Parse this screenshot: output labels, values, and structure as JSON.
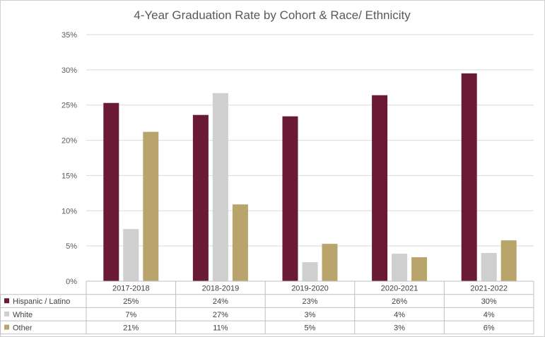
{
  "chart_data": {
    "type": "bar",
    "title": "4-Year Graduation Rate by Cohort & Race/ Ethnicity",
    "categories": [
      "2017-2018",
      "2018-2019",
      "2019-2020",
      "2020-2021",
      "2021-2022"
    ],
    "series": [
      {
        "name": "Hispanic / Latino",
        "color": "#6b1a35",
        "values": [
          25.3,
          23.6,
          23.4,
          26.4,
          29.5
        ],
        "labels": [
          "25%",
          "24%",
          "23%",
          "26%",
          "30%"
        ]
      },
      {
        "name": "White",
        "color": "#cfcfcf",
        "values": [
          7.4,
          26.7,
          2.7,
          3.9,
          4.0
        ],
        "labels": [
          "7%",
          "27%",
          "3%",
          "4%",
          "4%"
        ]
      },
      {
        "name": "Other",
        "color": "#b9a46b",
        "values": [
          21.2,
          10.9,
          5.3,
          3.4,
          5.8
        ],
        "labels": [
          "21%",
          "11%",
          "5%",
          "3%",
          "6%"
        ]
      }
    ],
    "ylim": [
      0,
      35
    ],
    "yticks": [
      "0%",
      "5%",
      "10%",
      "15%",
      "20%",
      "25%",
      "30%",
      "35%"
    ],
    "grid": true,
    "legend": "data-table-left"
  }
}
